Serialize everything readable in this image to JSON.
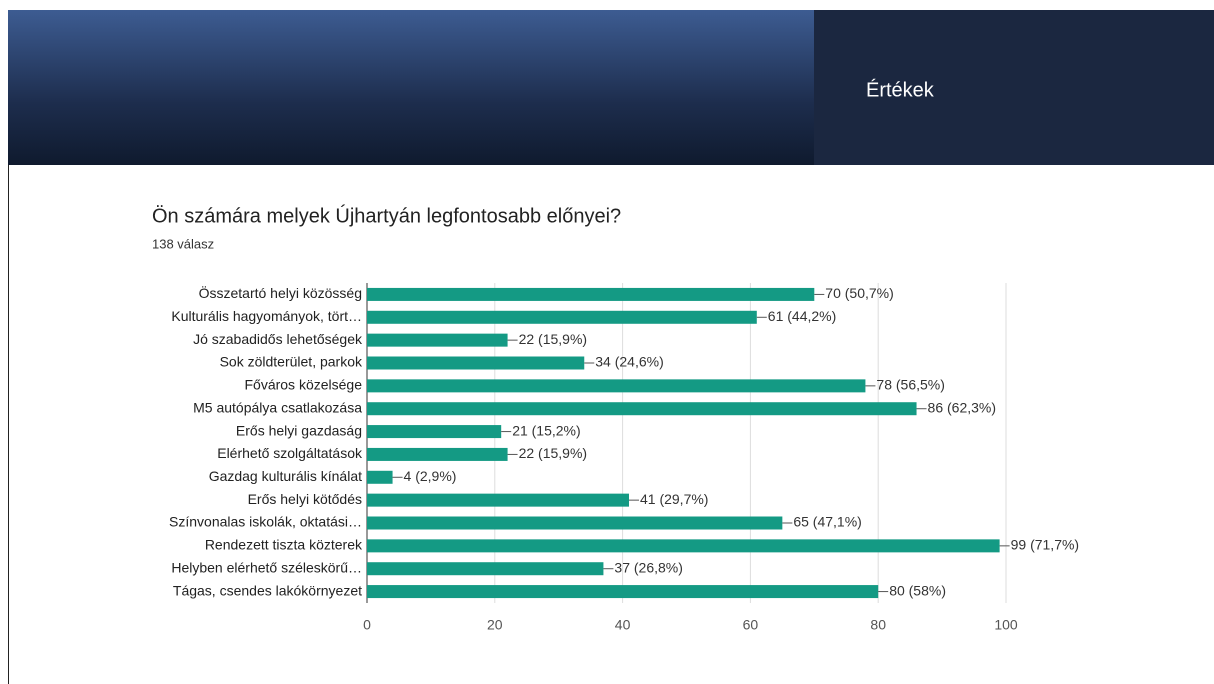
{
  "header": {
    "title": "Értékek"
  },
  "chart_data": {
    "type": "bar",
    "orientation": "horizontal",
    "title": "Ön számára melyek Újhartyán legfontosabb előnyei?",
    "subtitle": "138 válasz",
    "categories": [
      "Összetartó helyi közösség",
      "Kulturális hagyományok, tört…",
      "Jó szabadidős lehetőségek",
      "Sok zöldterület, parkok",
      "Főváros közelsége",
      "M5 autópálya csatlakozása",
      "Erős helyi gazdaság",
      "Elérhető szolgáltatások",
      "Gazdag kulturális kínálat",
      "Erős helyi kötődés",
      "Színvonalas iskolák, oktatási…",
      "Rendezett tiszta közterek",
      "Helyben elérhető széleskörű…",
      "Tágas, csendes lakókörnyezet"
    ],
    "values": [
      70,
      61,
      22,
      34,
      78,
      86,
      21,
      22,
      4,
      41,
      65,
      99,
      37,
      80
    ],
    "value_labels": [
      "70 (50,7%)",
      "61 (44,2%)",
      "22 (15,9%)",
      "34 (24,6%)",
      "78 (56,5%)",
      "86 (62,3%)",
      "21 (15,2%)",
      "22 (15,9%)",
      "4 (2,9%)",
      "41 (29,7%)",
      "65 (47,1%)",
      "99 (71,7%)",
      "37 (26,8%)",
      "80 (58%)"
    ],
    "color": "#149a84",
    "xlim": [
      0,
      100
    ],
    "xticks": [
      0,
      20,
      40,
      60,
      80,
      100
    ],
    "grid": true
  }
}
